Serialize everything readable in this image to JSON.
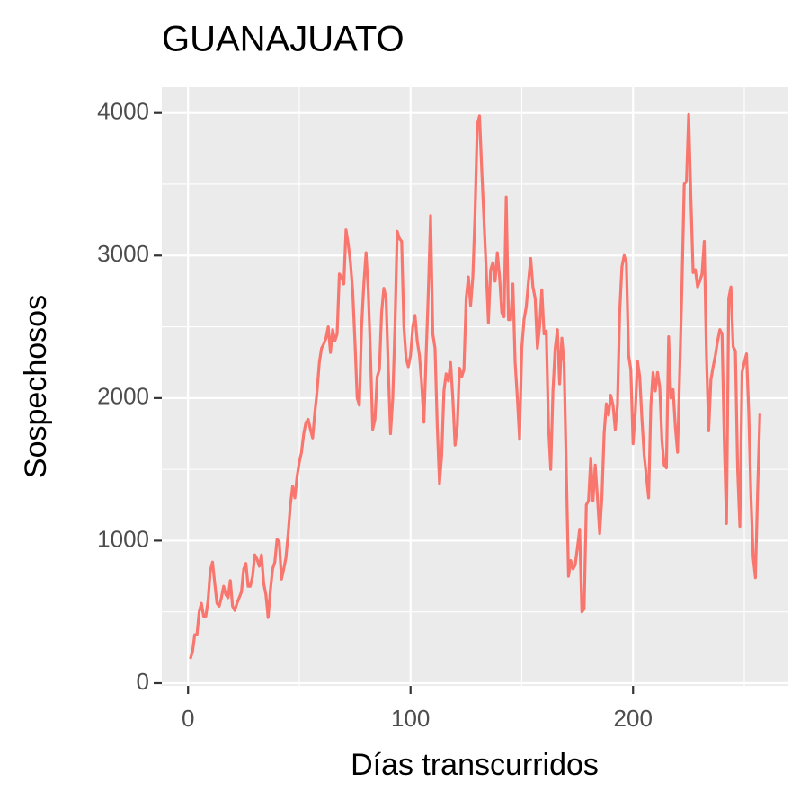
{
  "chart_data": {
    "type": "line",
    "title": "GUANAJUATO",
    "x_label": "Días transcurridos",
    "y_label": "Sospechosos",
    "color": "#f8766d",
    "grid": true,
    "minor_grid": true,
    "xlim": [
      -11.8,
      269.8
    ],
    "xticks": [
      0,
      100,
      200
    ],
    "ylim": [
      -19,
      4181
    ],
    "yticks": [
      0,
      1000,
      2000,
      3000,
      4000
    ],
    "x": [
      1,
      2,
      3,
      4,
      5,
      6,
      7,
      8,
      9,
      10,
      11,
      12,
      13,
      14,
      15,
      16,
      17,
      18,
      19,
      20,
      21,
      22,
      23,
      24,
      25,
      26,
      27,
      28,
      29,
      30,
      31,
      32,
      33,
      34,
      35,
      36,
      37,
      38,
      39,
      40,
      41,
      42,
      43,
      44,
      45,
      46,
      47,
      48,
      49,
      50,
      51,
      52,
      53,
      54,
      55,
      56,
      57,
      58,
      59,
      60,
      61,
      62,
      63,
      64,
      65,
      66,
      67,
      68,
      69,
      70,
      71,
      72,
      73,
      74,
      75,
      76,
      77,
      78,
      79,
      80,
      81,
      82,
      83,
      84,
      85,
      86,
      87,
      88,
      89,
      90,
      91,
      92,
      93,
      94,
      95,
      96,
      97,
      98,
      99,
      100,
      101,
      102,
      103,
      104,
      105,
      106,
      107,
      108,
      109,
      110,
      111,
      112,
      113,
      114,
      115,
      116,
      117,
      118,
      119,
      120,
      121,
      122,
      123,
      124,
      125,
      126,
      127,
      128,
      129,
      130,
      131,
      132,
      133,
      134,
      135,
      136,
      137,
      138,
      139,
      140,
      141,
      142,
      143,
      144,
      145,
      146,
      147,
      148,
      149,
      150,
      151,
      152,
      153,
      154,
      155,
      156,
      157,
      158,
      159,
      160,
      161,
      162,
      163,
      164,
      165,
      166,
      167,
      168,
      169,
      170,
      171,
      172,
      173,
      174,
      175,
      176,
      177,
      178,
      179,
      180,
      181,
      182,
      183,
      184,
      185,
      186,
      187,
      188,
      189,
      190,
      191,
      192,
      193,
      194,
      195,
      196,
      197,
      198,
      199,
      200,
      201,
      202,
      203,
      204,
      205,
      206,
      207,
      208,
      209,
      210,
      211,
      212,
      213,
      214,
      215,
      216,
      217,
      218,
      219,
      220,
      221,
      222,
      223,
      224,
      225,
      226,
      227,
      228,
      229,
      230,
      231,
      232,
      233,
      234,
      235,
      236,
      237,
      238,
      239,
      240,
      241,
      242,
      243,
      244,
      245,
      246,
      247,
      248,
      249,
      250,
      251,
      252,
      253,
      254,
      255,
      256,
      257
    ],
    "values": [
      170,
      220,
      340,
      340,
      500,
      560,
      470,
      470,
      580,
      790,
      850,
      700,
      560,
      540,
      600,
      680,
      620,
      600,
      720,
      540,
      510,
      560,
      600,
      640,
      800,
      840,
      680,
      680,
      750,
      900,
      870,
      820,
      900,
      700,
      620,
      460,
      650,
      800,
      850,
      1010,
      990,
      730,
      800,
      880,
      1050,
      1250,
      1380,
      1300,
      1450,
      1550,
      1620,
      1750,
      1830,
      1850,
      1780,
      1720,
      1900,
      2050,
      2250,
      2350,
      2380,
      2420,
      2500,
      2320,
      2480,
      2400,
      2450,
      2870,
      2850,
      2800,
      3180,
      3080,
      2950,
      2750,
      2400,
      2000,
      1950,
      2500,
      2800,
      3020,
      2750,
      2300,
      1780,
      1850,
      2150,
      2200,
      2600,
      2770,
      2700,
      2200,
      1750,
      2000,
      2500,
      3170,
      3120,
      3100,
      2500,
      2280,
      2220,
      2300,
      2500,
      2580,
      2400,
      2300,
      2100,
      1830,
      2300,
      2750,
      3280,
      2450,
      2350,
      1800,
      1400,
      1600,
      2050,
      2170,
      2120,
      2250,
      2000,
      1670,
      1800,
      2210,
      2150,
      2200,
      2700,
      2850,
      2650,
      2850,
      3300,
      3920,
      3980,
      3600,
      3250,
      2900,
      2530,
      2900,
      2950,
      2820,
      3020,
      2850,
      2600,
      2570,
      3410,
      2550,
      2550,
      2800,
      2250,
      2000,
      1710,
      2350,
      2550,
      2640,
      2820,
      2980,
      2780,
      2700,
      2350,
      2500,
      2760,
      2450,
      2470,
      1800,
      1500,
      2050,
      2350,
      2480,
      2100,
      2420,
      2250,
      1500,
      750,
      860,
      800,
      830,
      950,
      1080,
      500,
      520,
      1250,
      1280,
      1580,
      1280,
      1530,
      1300,
      1050,
      1300,
      1750,
      1960,
      1880,
      2020,
      1950,
      1780,
      1950,
      2600,
      2920,
      3000,
      2950,
      2300,
      2200,
      1680,
      1900,
      2260,
      2150,
      1850,
      1600,
      1450,
      1300,
      1950,
      2180,
      2050,
      2180,
      2080,
      1700,
      1530,
      1510,
      2430,
      2000,
      2060,
      1800,
      1620,
      2200,
      2800,
      3500,
      3520,
      3990,
      3400,
      2880,
      2900,
      2780,
      2820,
      2870,
      3100,
      2300,
      1770,
      2130,
      2220,
      2300,
      2400,
      2480,
      2450,
      1700,
      1120,
      2700,
      2780,
      2360,
      2330,
      1500,
      1100,
      2180,
      2250,
      2310,
      1900,
      1300,
      880,
      740,
      1350,
      1890
    ]
  }
}
